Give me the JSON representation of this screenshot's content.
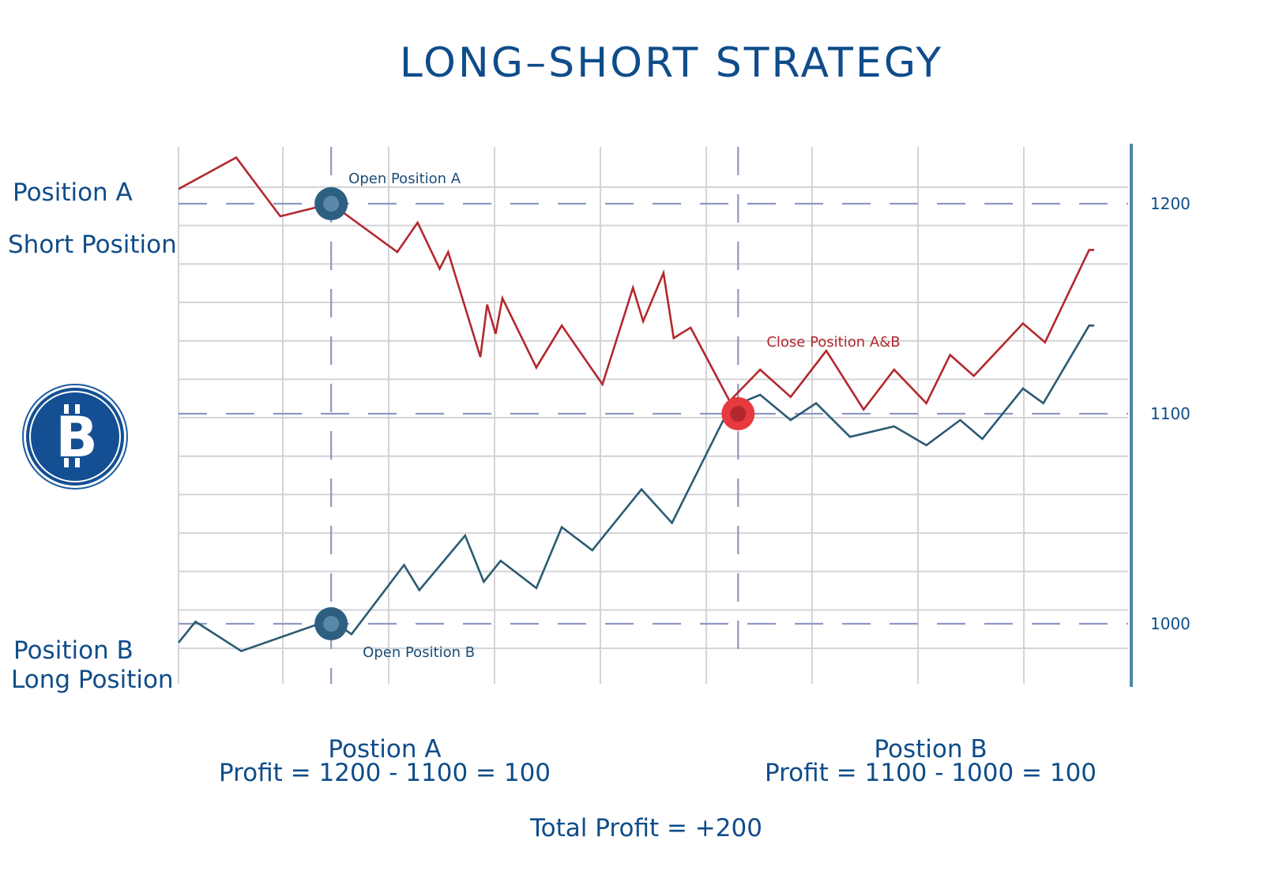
{
  "title": "LONG–SHORT STRATEGY",
  "labels": {
    "position_a": "Position A",
    "short_position": "Short Position",
    "position_b": "Position B",
    "long_position": "Long Position"
  },
  "annotations": {
    "open_a": "Open Position A",
    "open_b": "Open Position B",
    "close_ab": "Close Position A&B"
  },
  "profit": {
    "a_title": "Postion A",
    "a_formula": "Profit = 1200 - 1100 = 100",
    "b_title": "Postion B",
    "b_formula": "Profit = 1100 - 1000 = 100",
    "total": "Total Profit = +200"
  },
  "icons": {
    "logo": "bitcoin-icon"
  },
  "colors": {
    "title": "#0f4c8a",
    "short_line": "#b3282d",
    "long_line": "#2c5a72",
    "close_marker": "#e63a3e",
    "open_marker": "#2d5f80",
    "reference_dash": "#8e98c2",
    "right_axis": "#4e86a6"
  },
  "chart_data": {
    "type": "line",
    "x": [
      0,
      7,
      10,
      14,
      15,
      17,
      18,
      19,
      20.5,
      21,
      22,
      24,
      26,
      28,
      29.3,
      30,
      30.5,
      31,
      32,
      33,
      34,
      35,
      37,
      38,
      40,
      42,
      43,
      45,
      47,
      48,
      50,
      52,
      53,
      54.5,
      55,
      56
    ],
    "y_ticks": [
      1000,
      1100,
      1200
    ],
    "ylim": [
      970,
      1226
    ],
    "xlim": [
      0,
      56
    ],
    "grid": true,
    "reference_lines_y": [
      1200,
      1100,
      1000
    ],
    "events": [
      {
        "label_key": "open_a",
        "x": 9,
        "y": 1200,
        "series": "Position A"
      },
      {
        "label_key": "open_b",
        "x": 9,
        "y": 1000,
        "series": "Position B"
      },
      {
        "label_key": "close_ab",
        "x": 33,
        "y": 1100,
        "series": "both"
      }
    ],
    "series": [
      {
        "name": "Position A",
        "points": [
          [
            0,
            1207
          ],
          [
            3.4,
            1222
          ],
          [
            6,
            1194
          ],
          [
            9,
            1200
          ],
          [
            12.9,
            1177
          ],
          [
            14.1,
            1191
          ],
          [
            15.4,
            1169
          ],
          [
            15.9,
            1177
          ],
          [
            17.8,
            1127
          ],
          [
            18.2,
            1152
          ],
          [
            18.7,
            1138
          ],
          [
            19.1,
            1155
          ],
          [
            21.1,
            1122
          ],
          [
            22.6,
            1142
          ],
          [
            25,
            1114
          ],
          [
            26.8,
            1160
          ],
          [
            27.4,
            1144
          ],
          [
            28.6,
            1167
          ],
          [
            29.2,
            1136
          ],
          [
            30.2,
            1141
          ],
          [
            32.5,
            1106
          ],
          [
            34.3,
            1121
          ],
          [
            36.1,
            1108
          ],
          [
            38.2,
            1130
          ],
          [
            40.4,
            1102
          ],
          [
            42.2,
            1121
          ],
          [
            44.1,
            1105
          ],
          [
            45.5,
            1128
          ],
          [
            46.9,
            1118
          ],
          [
            49.8,
            1143
          ],
          [
            51.1,
            1134
          ],
          [
            53.7,
            1178
          ],
          [
            54,
            1178
          ]
        ]
      },
      {
        "name": "Position B",
        "points": [
          [
            0,
            991
          ],
          [
            1,
            1001
          ],
          [
            3.7,
            987
          ],
          [
            9,
            1002
          ],
          [
            10.2,
            995
          ],
          [
            13.3,
            1028
          ],
          [
            14.2,
            1016
          ],
          [
            16.9,
            1042
          ],
          [
            18,
            1020
          ],
          [
            19,
            1030
          ],
          [
            21.1,
            1017
          ],
          [
            22.6,
            1046
          ],
          [
            24.4,
            1035
          ],
          [
            27.3,
            1064
          ],
          [
            29.1,
            1048
          ],
          [
            32.5,
            1103
          ],
          [
            34.3,
            1109
          ],
          [
            36.1,
            1097
          ],
          [
            37.6,
            1105
          ],
          [
            39.6,
            1089
          ],
          [
            42.2,
            1094
          ],
          [
            44.1,
            1085
          ],
          [
            46.1,
            1097
          ],
          [
            47.4,
            1088
          ],
          [
            49.8,
            1112
          ],
          [
            51,
            1105
          ],
          [
            53.7,
            1142
          ],
          [
            54,
            1142
          ]
        ]
      }
    ]
  }
}
